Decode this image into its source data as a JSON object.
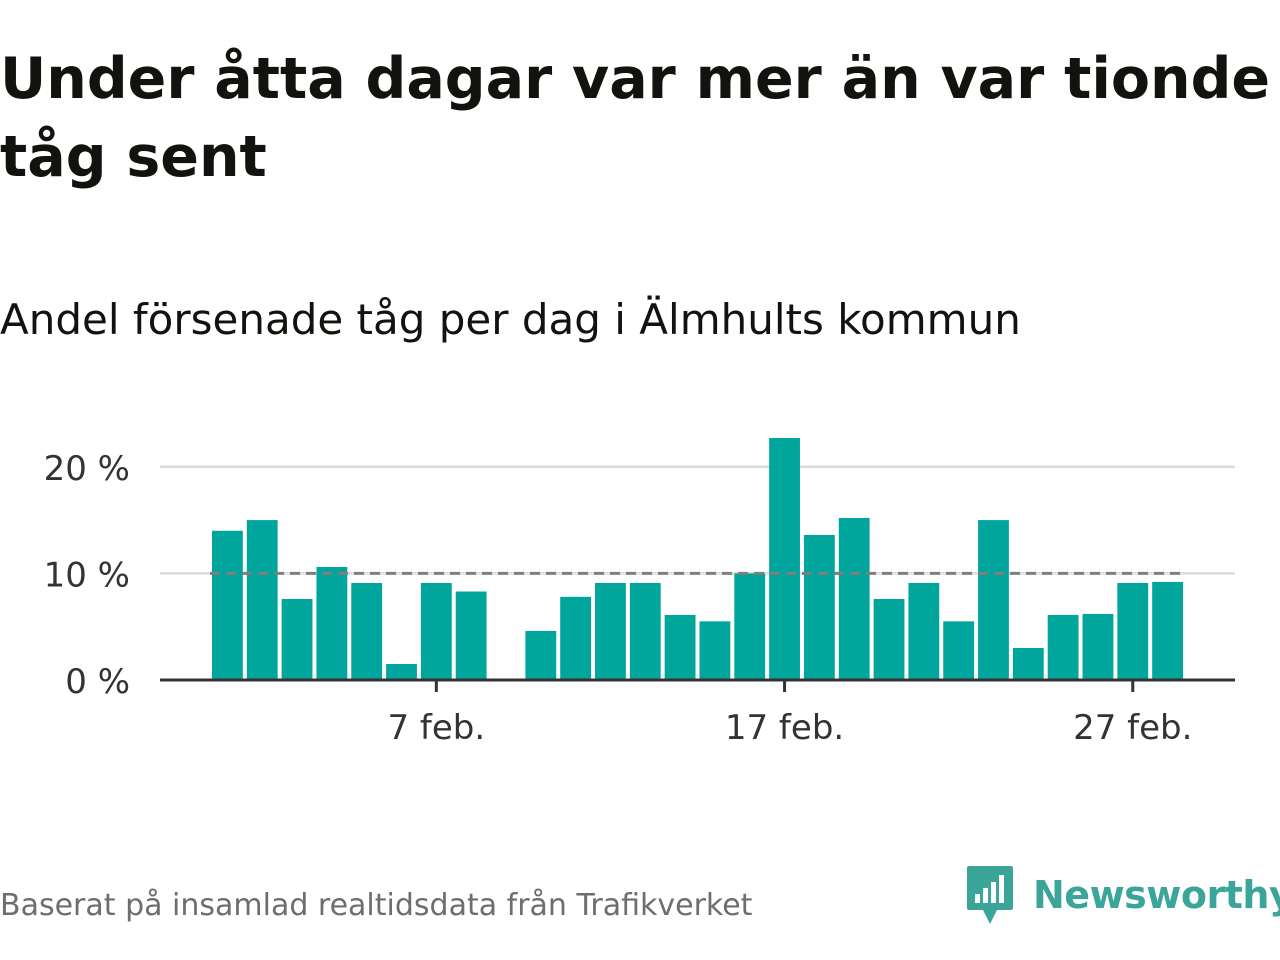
{
  "title": "Under åtta dagar var mer än var tionde tåg sent",
  "subtitle": "Andel försenade tåg per dag i Älmhults kommun",
  "source": "Baserat på insamlad realtidsdata från Trafikverket",
  "brand": {
    "name": "Newsworthy",
    "color": "#3aa598",
    "icon": "newsworthy-logo-icon"
  },
  "colors": {
    "bar": "#00a59b",
    "reference_line": "#7f7f7f",
    "grid": "#dcdcdc",
    "axis": "#333333",
    "tick_text": "#333333"
  },
  "chart_data": {
    "type": "bar",
    "x_start": "2024-02-01",
    "xlim": [
      "2024-01-31",
      "2024-03-01"
    ],
    "values": [
      14.0,
      15.0,
      7.6,
      10.6,
      9.1,
      1.5,
      9.1,
      8.3,
      null,
      4.6,
      7.8,
      9.1,
      9.1,
      6.1,
      5.5,
      10.0,
      22.7,
      13.6,
      15.2,
      7.6,
      9.1,
      5.5,
      15.0,
      3.0,
      6.1,
      6.2,
      9.1,
      9.2
    ],
    "ylim": [
      0,
      22.7
    ],
    "y_ticks": [
      {
        "value": 0,
        "label": "0 %"
      },
      {
        "value": 10,
        "label": "10 %"
      },
      {
        "value": 20,
        "label": "20 %"
      }
    ],
    "x_ticks": [
      {
        "date": "2024-02-07",
        "label": "7 feb."
      },
      {
        "date": "2024-02-17",
        "label": "17 feb."
      },
      {
        "date": "2024-02-27",
        "label": "27 feb."
      }
    ],
    "reference_line": 10,
    "grid": true,
    "legend": "none"
  }
}
